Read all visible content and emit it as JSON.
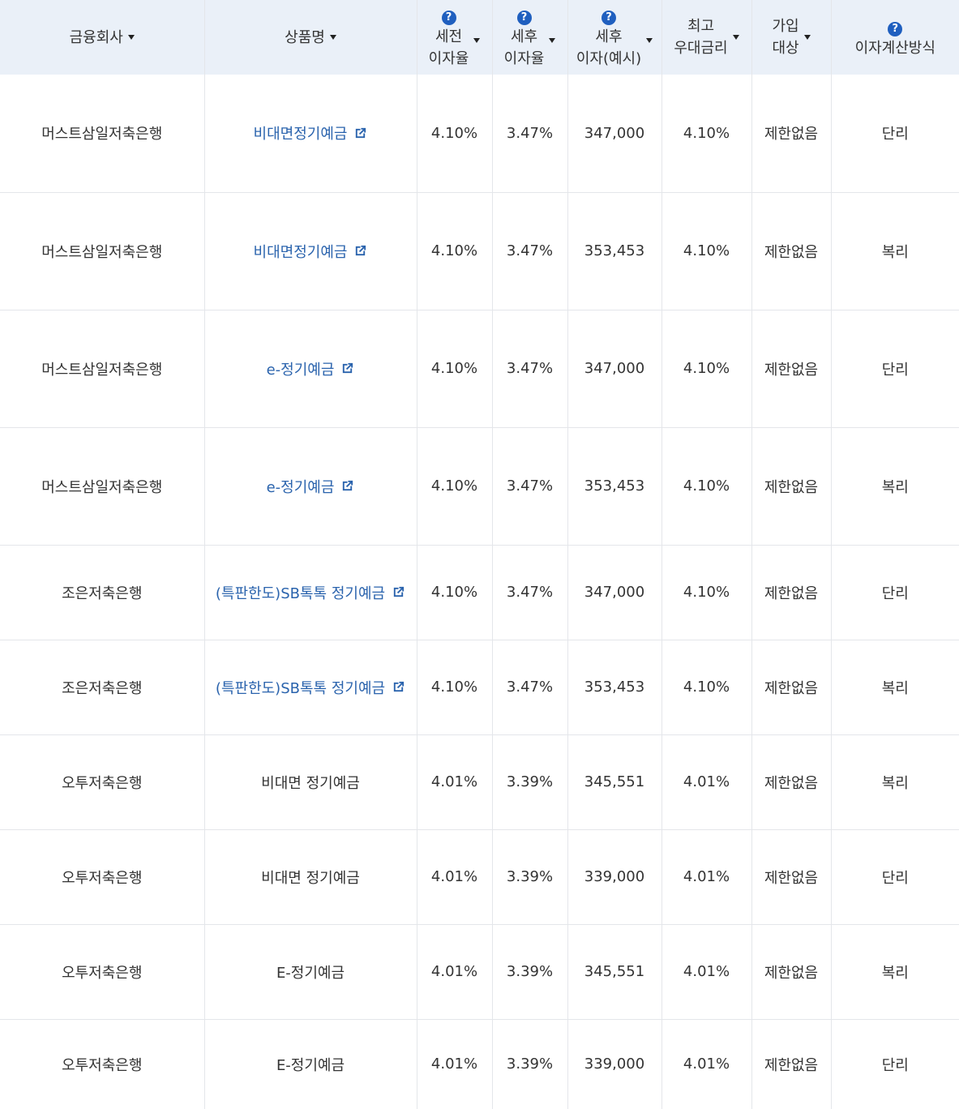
{
  "headers": {
    "bank": "금융회사",
    "product": "상품명",
    "pre_tax": [
      "세전",
      "이자율"
    ],
    "post_tax": [
      "세후",
      "이자율"
    ],
    "post_interest": [
      "세후",
      "이자(예시)"
    ],
    "max_rate": [
      "최고",
      "우대금리"
    ],
    "eligibility": [
      "가입",
      "대상"
    ],
    "calc": "이자계산방식",
    "help_glyph": "?"
  },
  "icons": {
    "sort": "caret-down-icon",
    "help": "question-circle-icon",
    "external": "external-link-icon"
  },
  "colors": {
    "header_bg": "#eaf0f8",
    "link": "#2a63ad",
    "help": "#1f5fbf",
    "border": "#e4e6ea"
  },
  "rows": [
    {
      "bank": "머스트삼일저축은행",
      "product": "비대면정기예금",
      "link": true,
      "pre_tax": "4.10%",
      "post_tax": "3.47%",
      "interest": "347,000",
      "max": "4.10%",
      "elig": "제한없음",
      "calc": "단리"
    },
    {
      "bank": "머스트삼일저축은행",
      "product": "비대면정기예금",
      "link": true,
      "pre_tax": "4.10%",
      "post_tax": "3.47%",
      "interest": "353,453",
      "max": "4.10%",
      "elig": "제한없음",
      "calc": "복리"
    },
    {
      "bank": "머스트삼일저축은행",
      "product": "e-정기예금",
      "link": true,
      "pre_tax": "4.10%",
      "post_tax": "3.47%",
      "interest": "347,000",
      "max": "4.10%",
      "elig": "제한없음",
      "calc": "단리"
    },
    {
      "bank": "머스트삼일저축은행",
      "product": "e-정기예금",
      "link": true,
      "pre_tax": "4.10%",
      "post_tax": "3.47%",
      "interest": "353,453",
      "max": "4.10%",
      "elig": "제한없음",
      "calc": "복리"
    },
    {
      "bank": "조은저축은행",
      "product": "(특판한도)SB톡톡 정기예금",
      "link": true,
      "pre_tax": "4.10%",
      "post_tax": "3.47%",
      "interest": "347,000",
      "max": "4.10%",
      "elig": "제한없음",
      "calc": "단리"
    },
    {
      "bank": "조은저축은행",
      "product": "(특판한도)SB톡톡 정기예금",
      "link": true,
      "pre_tax": "4.10%",
      "post_tax": "3.47%",
      "interest": "353,453",
      "max": "4.10%",
      "elig": "제한없음",
      "calc": "복리"
    },
    {
      "bank": "오투저축은행",
      "product": "비대면 정기예금",
      "link": false,
      "pre_tax": "4.01%",
      "post_tax": "3.39%",
      "interest": "345,551",
      "max": "4.01%",
      "elig": "제한없음",
      "calc": "복리"
    },
    {
      "bank": "오투저축은행",
      "product": "비대면 정기예금",
      "link": false,
      "pre_tax": "4.01%",
      "post_tax": "3.39%",
      "interest": "339,000",
      "max": "4.01%",
      "elig": "제한없음",
      "calc": "단리"
    },
    {
      "bank": "오투저축은행",
      "product": "E-정기예금",
      "link": false,
      "pre_tax": "4.01%",
      "post_tax": "3.39%",
      "interest": "345,551",
      "max": "4.01%",
      "elig": "제한없음",
      "calc": "복리"
    },
    {
      "bank": "오투저축은행",
      "product": "E-정기예금",
      "link": false,
      "pre_tax": "4.01%",
      "post_tax": "3.39%",
      "interest": "339,000",
      "max": "4.01%",
      "elig": "제한없음",
      "calc": "단리"
    }
  ]
}
